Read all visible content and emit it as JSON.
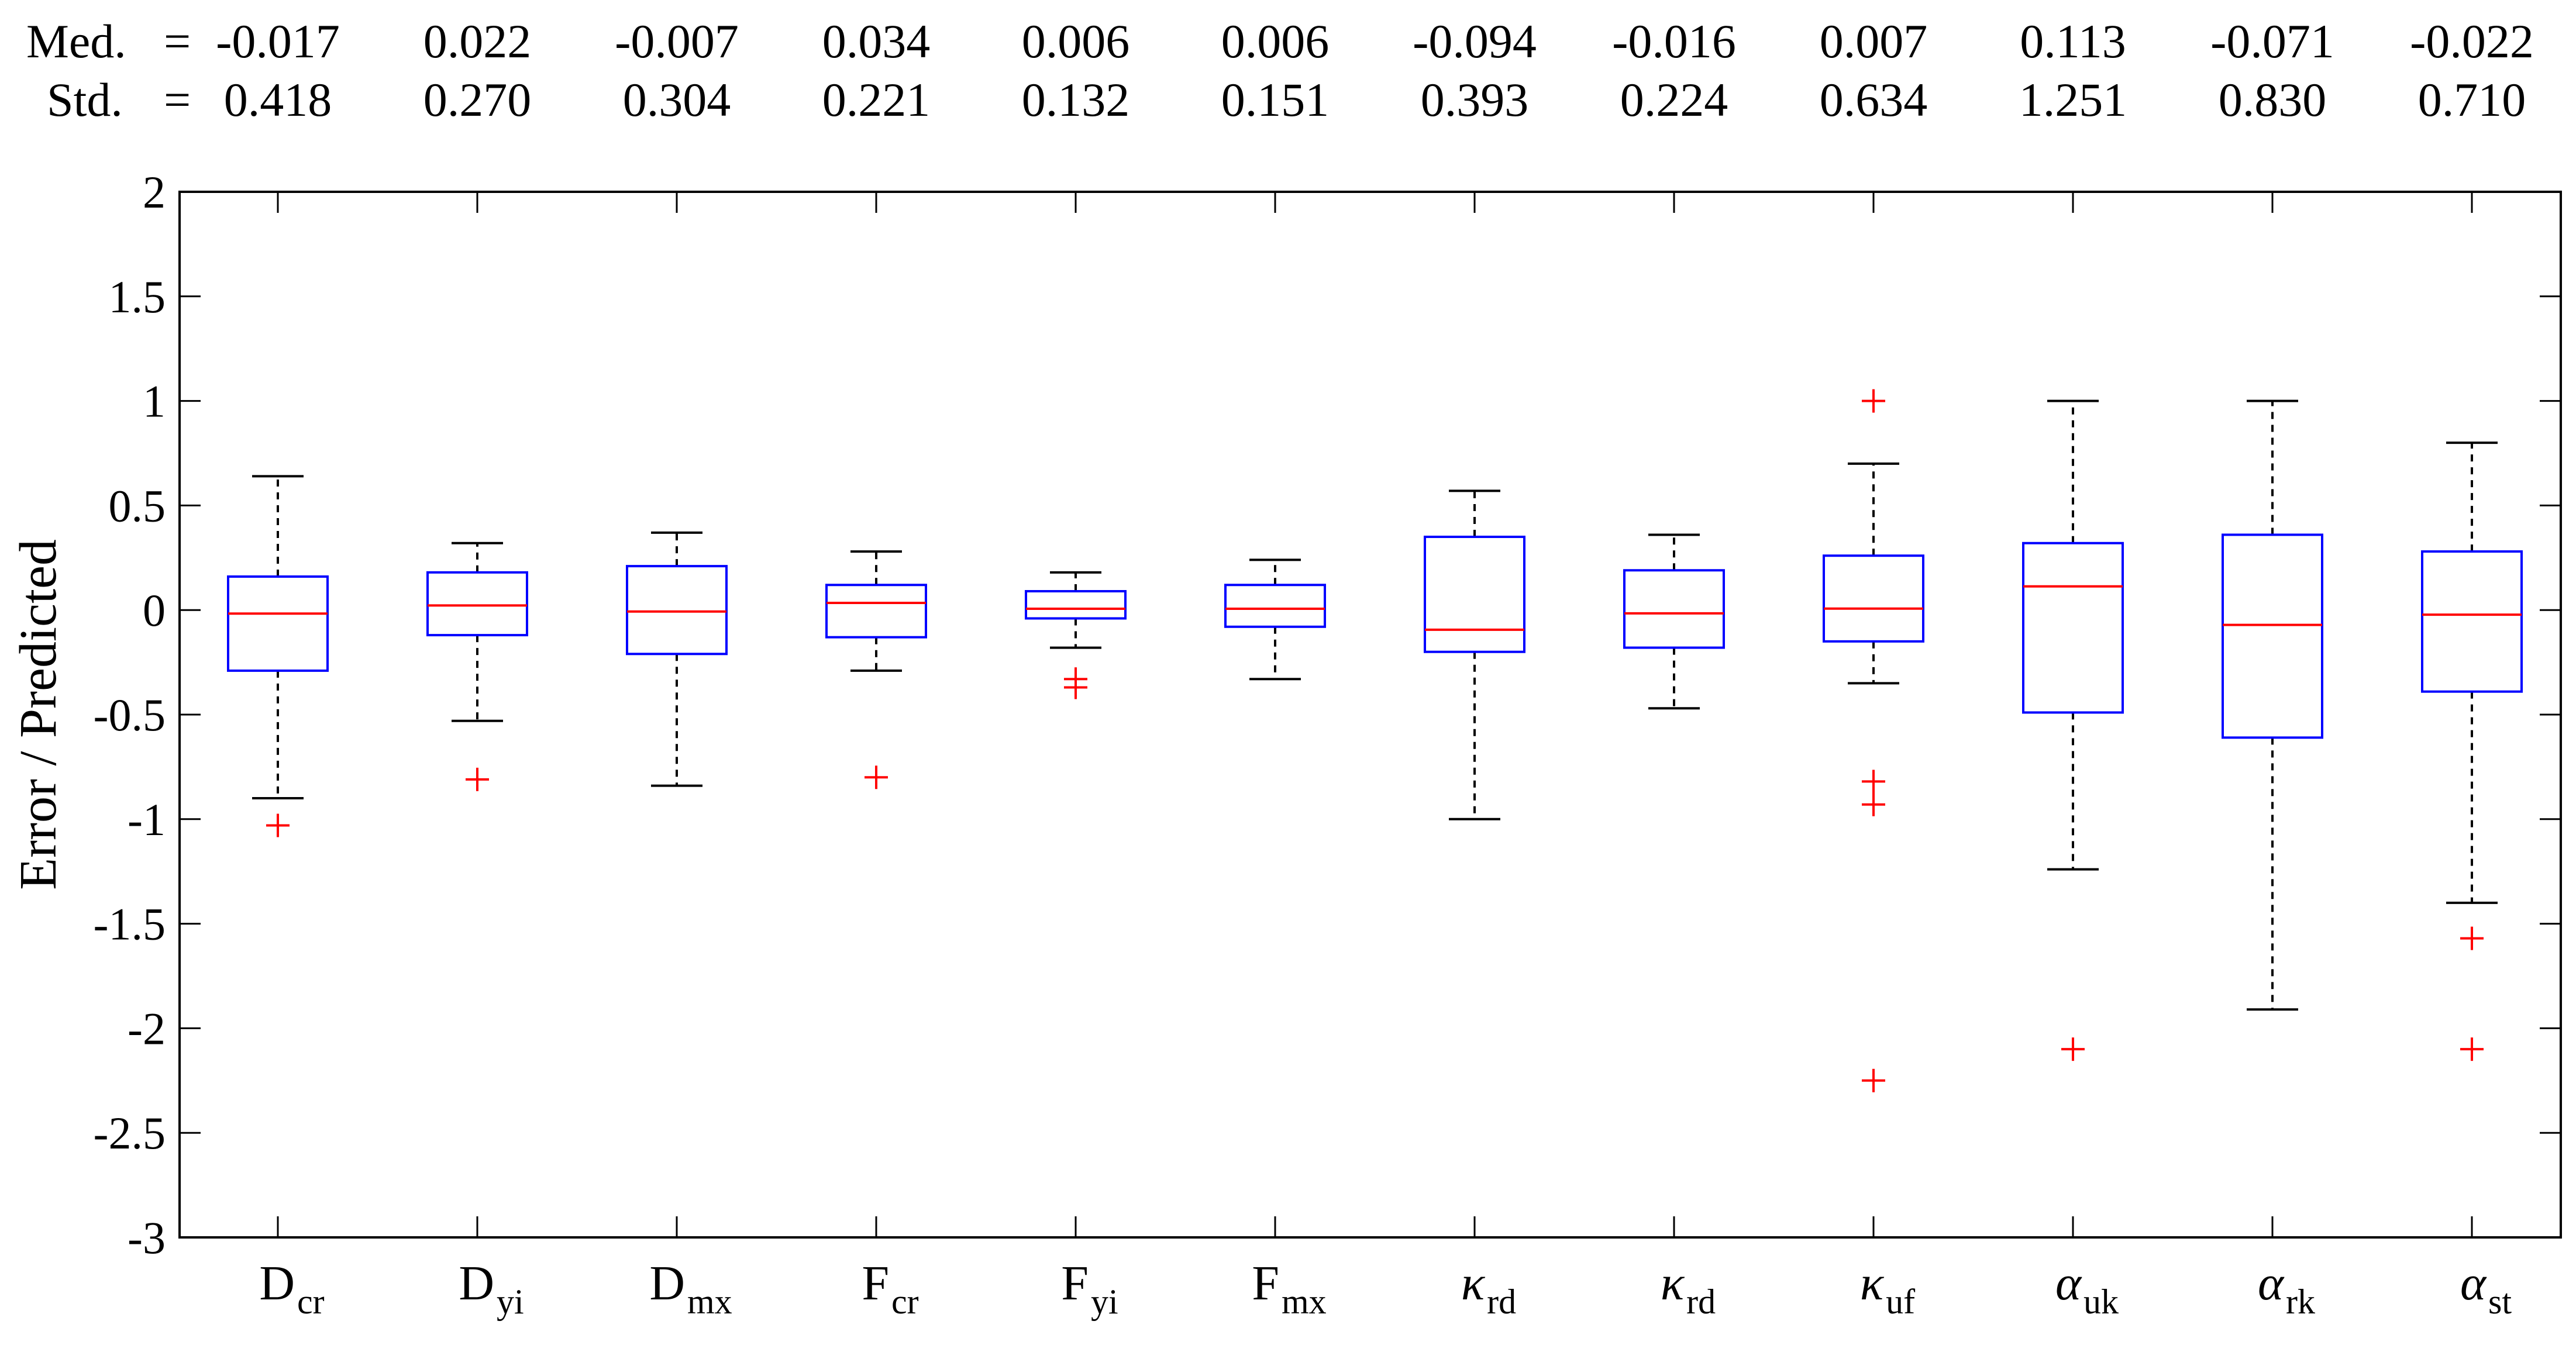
{
  "chart_data": {
    "type": "boxplot",
    "ylabel": "Error / Predicted",
    "xlabel": "",
    "ylim": [
      -3,
      2
    ],
    "yticks": [
      -3,
      -2.5,
      -2,
      -1.5,
      -1,
      -0.5,
      0,
      0.5,
      1,
      1.5,
      2
    ],
    "ytick_labels": [
      "-3",
      "-2.5",
      "-2",
      "-1.5",
      "-1",
      "-0.5",
      "0",
      "0.5",
      "1",
      "1.5",
      "2"
    ],
    "grid": false,
    "stats_header": {
      "median_label": "Med.",
      "std_label": "Std.",
      "equals": "="
    },
    "colors": {
      "box": "#0000ff",
      "median": "#ff0000",
      "whisker": "#000000",
      "outlier": "#ff0000",
      "axis": "#000000"
    },
    "categories": [
      {
        "symbol": "D",
        "sub": "cr",
        "med_text": "-0.017",
        "std_text": "0.418",
        "q1": -0.29,
        "median": -0.017,
        "q3": 0.16,
        "whisker_low": -0.9,
        "whisker_high": 0.64,
        "outliers": [
          -1.03
        ]
      },
      {
        "symbol": "D",
        "sub": "yi",
        "med_text": "0.022",
        "std_text": "0.270",
        "q1": -0.12,
        "median": 0.022,
        "q3": 0.18,
        "whisker_low": -0.53,
        "whisker_high": 0.32,
        "outliers": [
          -0.81
        ]
      },
      {
        "symbol": "D",
        "sub": "mx",
        "med_text": "-0.007",
        "std_text": "0.304",
        "q1": -0.21,
        "median": -0.007,
        "q3": 0.21,
        "whisker_low": -0.84,
        "whisker_high": 0.37,
        "outliers": []
      },
      {
        "symbol": "F",
        "sub": "cr",
        "med_text": "0.034",
        "std_text": "0.221",
        "q1": -0.13,
        "median": 0.034,
        "q3": 0.12,
        "whisker_low": -0.29,
        "whisker_high": 0.28,
        "outliers": [
          -0.8
        ]
      },
      {
        "symbol": "F",
        "sub": "yi",
        "med_text": "0.006",
        "std_text": "0.132",
        "q1": -0.04,
        "median": 0.006,
        "q3": 0.09,
        "whisker_low": -0.18,
        "whisker_high": 0.18,
        "outliers": [
          -0.33,
          -0.37
        ]
      },
      {
        "symbol": "F",
        "sub": "mx",
        "med_text": "0.006",
        "std_text": "0.151",
        "q1": -0.08,
        "median": 0.006,
        "q3": 0.12,
        "whisker_low": -0.33,
        "whisker_high": 0.24,
        "outliers": []
      },
      {
        "symbol": "κ",
        "sub": "rd",
        "med_text": "-0.094",
        "std_text": "0.393",
        "q1": -0.2,
        "median": -0.094,
        "q3": 0.35,
        "whisker_low": -1.0,
        "whisker_high": 0.57,
        "outliers": []
      },
      {
        "symbol": "κ",
        "sub": "rd",
        "med_text": "-0.016",
        "std_text": "0.224",
        "q1": -0.18,
        "median": -0.016,
        "q3": 0.19,
        "whisker_low": -0.47,
        "whisker_high": 0.36,
        "outliers": []
      },
      {
        "symbol": "κ",
        "sub": "uf",
        "med_text": "0.007",
        "std_text": "0.634",
        "q1": -0.15,
        "median": 0.007,
        "q3": 0.26,
        "whisker_low": -0.35,
        "whisker_high": 0.7,
        "outliers": [
          1.0,
          -0.82,
          -0.93,
          -2.25
        ]
      },
      {
        "symbol": "α",
        "sub": "uk",
        "med_text": "0.113",
        "std_text": "1.251",
        "q1": -0.49,
        "median": 0.113,
        "q3": 0.32,
        "whisker_low": -1.24,
        "whisker_high": 1.0,
        "outliers": [
          -2.1
        ]
      },
      {
        "symbol": "α",
        "sub": "rk",
        "med_text": "-0.071",
        "std_text": "0.830",
        "q1": -0.61,
        "median": -0.071,
        "q3": 0.36,
        "whisker_low": -1.91,
        "whisker_high": 1.0,
        "outliers": []
      },
      {
        "symbol": "α",
        "sub": "st",
        "med_text": "-0.022",
        "std_text": "0.710",
        "q1": -0.39,
        "median": -0.022,
        "q3": 0.28,
        "whisker_low": -1.4,
        "whisker_high": 0.8,
        "outliers": [
          -1.57,
          -2.1
        ]
      }
    ]
  }
}
